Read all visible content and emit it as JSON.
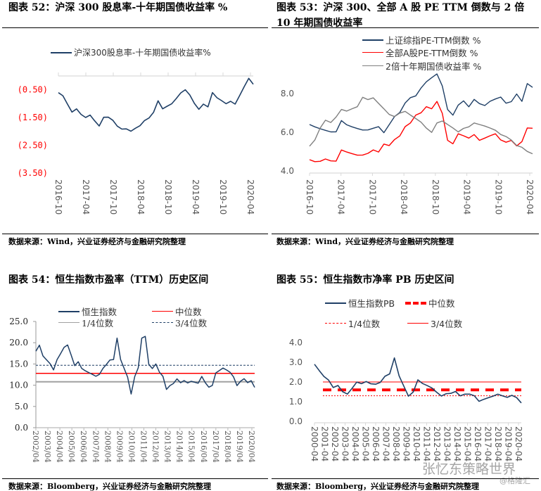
{
  "chart_data": [
    {
      "id": "c52",
      "type": "line",
      "title": "图表 52：沪深 300 股息率-十年期国债收益率  %",
      "source": "数据来源：Wind，兴业证券经济与金融研究院整理",
      "ylim": [
        -3.5,
        0
      ],
      "yticks": [
        -0.5,
        -1.5,
        -2.5,
        -3.5
      ],
      "ytick_labels": [
        "(0.50)",
        "(1.50)",
        "(2.50)",
        "(3.50)"
      ],
      "xtick_labels": [
        "2016-10",
        "2017-04",
        "2017-10",
        "2018-04",
        "2018-10",
        "2019-04",
        "2019-10",
        "2020-04"
      ],
      "series": [
        {
          "name": "沪深300股息率-十年期国债收益率%",
          "color": "#1f3f66",
          "values": [
            -0.6,
            -0.7,
            -1.0,
            -1.3,
            -1.2,
            -1.4,
            -1.5,
            -1.4,
            -1.6,
            -1.8,
            -1.5,
            -1.5,
            -1.6,
            -1.8,
            -1.9,
            -1.9,
            -2.0,
            -1.9,
            -1.8,
            -1.6,
            -1.5,
            -1.3,
            -0.9,
            -1.2,
            -1.1,
            -1.0,
            -0.8,
            -0.6,
            -0.5,
            -0.7,
            -1.0,
            -1.2,
            -1.0,
            -1.1,
            -0.6,
            -0.8,
            -0.9,
            -1.0,
            -0.9,
            -1.0,
            -0.7,
            -0.4,
            -0.1,
            -0.3
          ]
        }
      ]
    },
    {
      "id": "c53",
      "type": "line",
      "title": "图表 53：沪深 300、全部 A 股 PE TTM 倒数与 2 倍",
      "title2": "10 年期国债收益率",
      "source": "数据来源：Wind，兴业证券经济与金融研究院整理",
      "ylim": [
        4,
        9.2
      ],
      "yticks": [
        8,
        6,
        4
      ],
      "ytick_labels": [
        "8.0",
        "6.0",
        "4.0"
      ],
      "xtick_labels": [
        "2016-10",
        "2017-04",
        "2017-10",
        "2018-04",
        "2018-10",
        "2019-04",
        "2019-10",
        "2020-04"
      ],
      "series": [
        {
          "name": "上证综指PE-TTM倒数  %",
          "color": "#1f3f66",
          "values": [
            6.4,
            6.3,
            6.2,
            6.1,
            6.0,
            6.0,
            6.6,
            6.4,
            6.3,
            6.2,
            6.1,
            6.1,
            6.2,
            6.3,
            6.0,
            6.4,
            6.8,
            7.0,
            7.5,
            7.8,
            7.9,
            8.3,
            8.6,
            8.8,
            9.0,
            8.4,
            7.2,
            6.9,
            7.4,
            7.6,
            7.3,
            7.7,
            7.5,
            7.4,
            7.6,
            7.7,
            7.8,
            7.5,
            7.6,
            8.0,
            7.6,
            8.5,
            8.3
          ]
        },
        {
          "name": "全部A股PE-TTM倒数  %",
          "color": "#ff0000",
          "values": [
            4.6,
            4.5,
            4.5,
            4.6,
            4.5,
            4.5,
            5.1,
            5.0,
            4.9,
            4.8,
            4.8,
            4.9,
            5.1,
            5.0,
            5.4,
            5.3,
            5.6,
            5.8,
            6.3,
            6.5,
            6.9,
            7.0,
            7.3,
            7.2,
            7.6,
            7.0,
            5.6,
            5.4,
            5.9,
            5.8,
            5.7,
            5.9,
            5.6,
            5.7,
            5.8,
            5.9,
            5.6,
            5.5,
            5.6,
            5.3,
            5.5,
            6.2,
            6.2
          ]
        },
        {
          "name": "2倍十年期国债收益率  %",
          "color": "#7f7f7f",
          "values": [
            5.3,
            5.6,
            6.2,
            6.6,
            6.5,
            6.8,
            7.2,
            7.1,
            7.2,
            7.3,
            7.8,
            7.7,
            7.8,
            7.5,
            7.2,
            6.9,
            6.8,
            7.0,
            7.1,
            6.9,
            6.7,
            6.5,
            6.2,
            6.0,
            6.5,
            6.6,
            6.4,
            6.2,
            6.0,
            6.2,
            6.3,
            6.5,
            6.4,
            6.3,
            6.2,
            6.1,
            5.9,
            5.8,
            5.6,
            5.3,
            5.2,
            5.0,
            4.9
          ]
        }
      ]
    },
    {
      "id": "c54",
      "type": "line",
      "title": "图表 54：恒生指数市盈率（TTM）历史区间",
      "source": "数据来源：Bloomberg，兴业证券经济与金融研究院整理",
      "ylim": [
        0,
        25
      ],
      "yticks": [
        25,
        20,
        15,
        10,
        5,
        0
      ],
      "ytick_labels": [
        "25.0",
        "20.0",
        "15.0",
        "10.0",
        "5.0",
        "0.0"
      ],
      "xtick_labels": [
        "2002/04",
        "2003/04",
        "2004/04",
        "2005/04",
        "2006/04",
        "2007/04",
        "2008/04",
        "2009/04",
        "2010/04",
        "2011/04",
        "2012/04",
        "2013/04",
        "2014/04",
        "2015/04",
        "2016/04",
        "2017/04",
        "2018/04",
        "2019/04",
        "2020/04"
      ],
      "series": [
        {
          "name": "恒生指数",
          "color": "#1f3f66",
          "values": [
            18,
            19.5,
            17,
            16,
            15,
            13.5,
            16,
            17.5,
            19,
            19.5,
            17,
            14.5,
            15.5,
            14,
            13.5,
            13,
            12.5,
            12,
            12.5,
            14,
            15,
            16,
            16,
            21,
            16,
            14,
            12,
            8,
            12,
            14,
            21,
            21.5,
            15,
            14,
            15,
            13,
            12,
            9,
            10,
            10.5,
            11.5,
            10.5,
            11,
            10.5,
            11,
            10.8,
            10.5,
            12,
            10.5,
            9.5,
            10,
            13,
            13.5,
            14,
            13.5,
            13,
            12,
            10,
            11,
            11.5,
            10.5,
            11,
            9.5
          ]
        }
      ],
      "hlines": [
        {
          "name": "中位数",
          "value": 12.8,
          "color": "#ff0000",
          "style": "solid-red"
        },
        {
          "name": "1/4位数",
          "value": 10.8,
          "color": "#a0a0a0",
          "style": "solid-gray"
        },
        {
          "name": "3/4位数",
          "value": 14.7,
          "color": "#1f3f66",
          "style": "dashed"
        }
      ]
    },
    {
      "id": "c55",
      "type": "line",
      "title": "图表 55：恒生指数市净率 PB 历史区间",
      "source": "数据来源：Bloomberg，兴业证券经济与金融研究院整理",
      "ylim": [
        0,
        4
      ],
      "yticks": [
        4,
        3,
        2,
        1,
        0
      ],
      "ytick_labels": [
        "4.0",
        "3.0",
        "2.0",
        "1.0",
        "0.0"
      ],
      "xtick_labels": [
        "2000-04",
        "2001-04",
        "2002-04",
        "2003-04",
        "2004-04",
        "2005-04",
        "2006-04",
        "2007-04",
        "2008-04",
        "2009-04",
        "2010-04",
        "2011-04",
        "2012-04",
        "2013-04",
        "2014-04",
        "2015-04",
        "2016-04",
        "2017-04",
        "2018-04",
        "2019-04",
        "2020-04"
      ],
      "series": [
        {
          "name": "恒生指数PB",
          "color": "#1f3f66",
          "values": [
            2.9,
            2.6,
            2.3,
            2.1,
            1.7,
            1.8,
            1.5,
            1.4,
            1.7,
            2.0,
            1.9,
            2.0,
            1.9,
            1.9,
            2.0,
            2.3,
            2.4,
            3.2,
            2.3,
            1.8,
            1.3,
            1.5,
            2.1,
            1.9,
            1.8,
            1.7,
            1.5,
            1.3,
            1.4,
            1.4,
            1.5,
            1.3,
            1.4,
            1.4,
            1.3,
            1.0,
            1.1,
            1.2,
            1.3,
            1.4,
            1.3,
            1.2,
            1.3,
            1.2,
            0.95
          ]
        }
      ],
      "hlines": [
        {
          "name": "中位数",
          "value": 1.6,
          "color": "#ff0000",
          "style": "thick-dash"
        },
        {
          "name": "1/4位数",
          "value": 1.3,
          "color": "#ff0000",
          "style": "dotted"
        },
        {
          "name": "3/4位数",
          "value": 2.0,
          "color": "#ff0000",
          "style": "thin"
        }
      ]
    }
  ],
  "watermark": {
    "text": "张忆东策略世界",
    "sub": "@格隆汇"
  }
}
